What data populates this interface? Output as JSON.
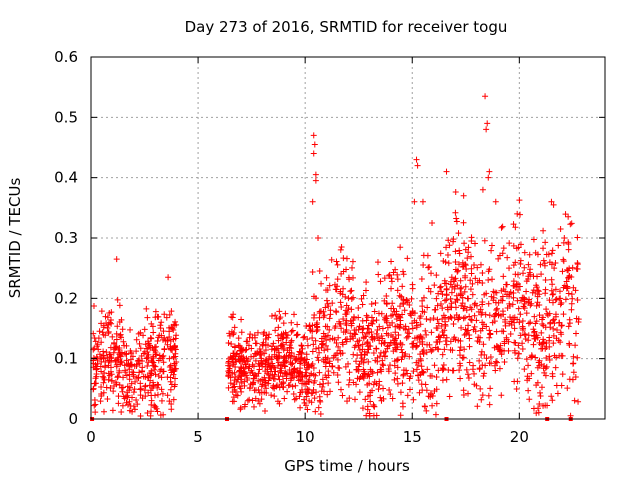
{
  "chart_data": {
    "type": "scatter",
    "title": "Day 273 of 2016, SRMTID for receiver togu",
    "xlabel": "GPS time / hours",
    "ylabel": "SRMTID / TECUs",
    "xlim": [
      0,
      24
    ],
    "ylim": [
      0,
      0.6
    ],
    "xticks": [
      0,
      5,
      10,
      15,
      20
    ],
    "xtick_labels": [
      "0",
      "5",
      "10",
      "15",
      "20"
    ],
    "yticks": [
      0,
      0.1,
      0.2,
      0.3,
      0.4,
      0.5,
      0.6
    ],
    "ytick_labels": [
      "0",
      "0.1",
      "0.2",
      "0.3",
      "0.4",
      "0.5",
      "0.6"
    ],
    "grid": true,
    "marker": "+",
    "series": [
      {
        "name": "SRMTID",
        "color": "#ff0000",
        "segments": [
          {
            "x_start": 0.1,
            "x_end": 4.0,
            "base": 0.09,
            "spread": 0.05,
            "count": 420
          },
          {
            "x_start": 6.4,
            "x_end": 10.2,
            "base": 0.09,
            "spread": 0.04,
            "count": 460
          },
          {
            "x_start": 10.2,
            "x_end": 15.5,
            "base": 0.13,
            "spread": 0.07,
            "count": 560
          },
          {
            "x_start": 15.5,
            "x_end": 22.8,
            "base": 0.17,
            "spread": 0.09,
            "count": 720
          }
        ],
        "outliers": [
          [
            1.2,
            0.265
          ],
          [
            3.6,
            0.235
          ],
          [
            10.4,
            0.47
          ],
          [
            10.45,
            0.455
          ],
          [
            10.4,
            0.44
          ],
          [
            10.5,
            0.405
          ],
          [
            10.5,
            0.395
          ],
          [
            10.35,
            0.36
          ],
          [
            10.6,
            0.3
          ],
          [
            11.7,
            0.285
          ],
          [
            13.4,
            0.26
          ],
          [
            14.6,
            0.24
          ],
          [
            15.2,
            0.43
          ],
          [
            15.25,
            0.42
          ],
          [
            15.1,
            0.36
          ],
          [
            15.5,
            0.36
          ],
          [
            16.6,
            0.41
          ],
          [
            17.4,
            0.37
          ],
          [
            18.4,
            0.535
          ],
          [
            18.5,
            0.49
          ],
          [
            18.45,
            0.48
          ],
          [
            18.6,
            0.41
          ],
          [
            18.55,
            0.4
          ],
          [
            18.3,
            0.38
          ],
          [
            18.9,
            0.36
          ],
          [
            19.9,
            0.34
          ],
          [
            21.5,
            0.36
          ],
          [
            21.6,
            0.355
          ],
          [
            22.1,
            0.3
          ],
          [
            22.3,
            0.29
          ]
        ],
        "gaps": [
          [
            0.05,
            0.0
          ],
          [
            6.35,
            0.0
          ],
          [
            16.6,
            0.0
          ],
          [
            21.3,
            0.0
          ],
          [
            22.4,
            0.0
          ]
        ]
      }
    ]
  }
}
